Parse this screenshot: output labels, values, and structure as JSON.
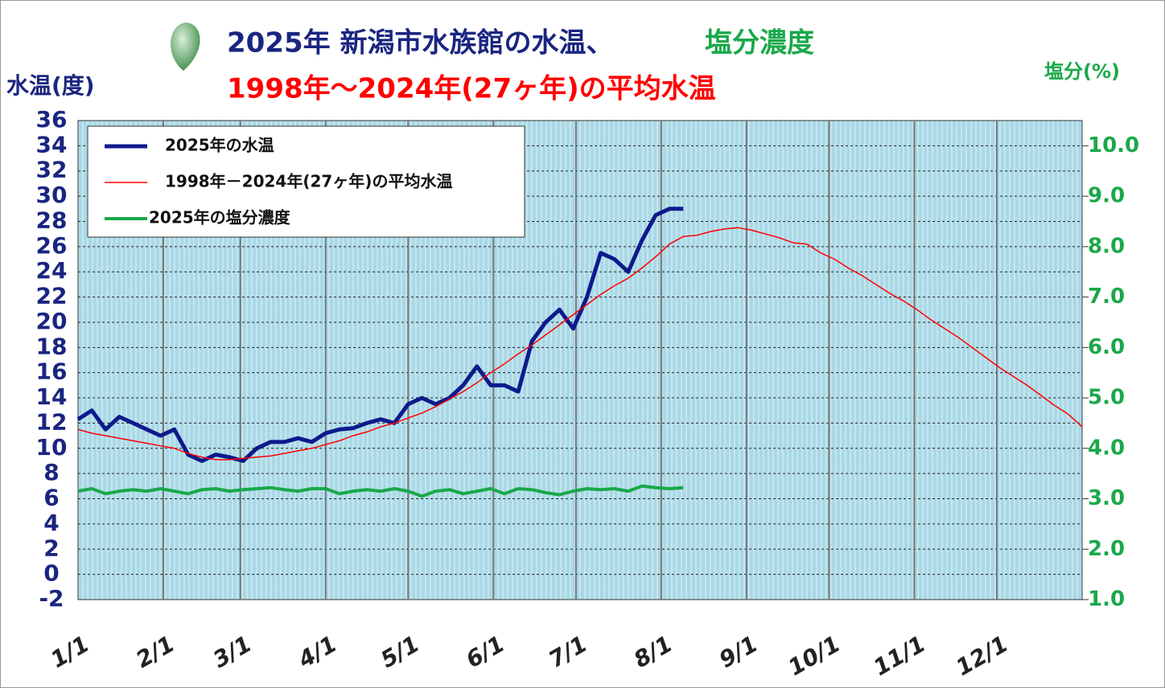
{
  "chart_data": {
    "type": "line",
    "title": "2025年 新潟市水族館の水温、",
    "title_suffix": "塩分濃度",
    "subtitle": "1998年～2024年(27ヶ年)の平均水温",
    "y_label": "水温(度)",
    "y2_label": "塩分(%)",
    "xlim": [
      0,
      365
    ],
    "xticks": [
      {
        "value": 0,
        "label": "1/1"
      },
      {
        "value": 31,
        "label": "2/1"
      },
      {
        "value": 59,
        "label": "3/1"
      },
      {
        "value": 90,
        "label": "4/1"
      },
      {
        "value": 120,
        "label": "5/1"
      },
      {
        "value": 151,
        "label": "6/1"
      },
      {
        "value": 181,
        "label": "7/1"
      },
      {
        "value": 212,
        "label": "8/1"
      },
      {
        "value": 243,
        "label": "9/1"
      },
      {
        "value": 273,
        "label": "10/1"
      },
      {
        "value": 304,
        "label": "11/1"
      },
      {
        "value": 334,
        "label": "12/1"
      }
    ],
    "ylim": [
      -2,
      36
    ],
    "yticks": [
      -2,
      0,
      2,
      4,
      6,
      8,
      10,
      12,
      14,
      16,
      18,
      20,
      22,
      24,
      26,
      28,
      30,
      32,
      34,
      36
    ],
    "y2lim": [
      1.0,
      10.5
    ],
    "y2ticks": [
      {
        "value": 1,
        "label": "1.0"
      },
      {
        "value": 2,
        "label": "2.0"
      },
      {
        "value": 3,
        "label": "3.0"
      },
      {
        "value": 4,
        "label": "4.0"
      },
      {
        "value": 5,
        "label": "5.0"
      },
      {
        "value": 6,
        "label": "6.0"
      },
      {
        "value": 7,
        "label": "7.0"
      },
      {
        "value": 8,
        "label": "8.0"
      },
      {
        "value": 9,
        "label": "9.0"
      },
      {
        "value": 10,
        "label": "10.0"
      }
    ],
    "grid": true,
    "legend": "upper left",
    "x": [
      0,
      5,
      10,
      15,
      20,
      25,
      30,
      35,
      40,
      45,
      50,
      55,
      60,
      65,
      70,
      75,
      80,
      85,
      90,
      95,
      100,
      105,
      110,
      115,
      120,
      125,
      130,
      135,
      140,
      145,
      150,
      155,
      160,
      165,
      170,
      175,
      180,
      185,
      190,
      195,
      200,
      205,
      210,
      215,
      220,
      225,
      230,
      235,
      240,
      245,
      250,
      255,
      260,
      265,
      270,
      275,
      280,
      285,
      290,
      295,
      300,
      305,
      310,
      315,
      320,
      325,
      330,
      335,
      340,
      345,
      350,
      355,
      360,
      365
    ],
    "series": [
      {
        "name": "2025年の水温",
        "color": "#0d1a8c",
        "values": [
          12.3,
          13,
          11.5,
          12.5,
          12,
          11.5,
          11,
          11.5,
          9.5,
          9,
          9.5,
          9.3,
          9,
          10,
          10.5,
          10.5,
          10.8,
          10.5,
          11.2,
          11.5,
          11.6,
          12,
          12.3,
          12,
          13.5,
          14,
          13.5,
          14,
          15,
          16.5,
          15,
          15,
          14.5,
          18.5,
          20,
          21,
          19.5,
          22,
          25.5,
          25,
          24,
          26.5,
          28.5,
          29,
          29,
          null,
          null,
          null,
          null,
          null,
          null,
          null,
          null,
          null,
          null,
          null,
          null,
          null,
          null,
          null,
          null,
          null,
          null,
          null,
          null,
          null,
          null,
          null,
          null,
          null,
          null,
          null,
          null,
          null
        ]
      },
      {
        "name": "1998年－2024年(27ヶ年)の平均水温",
        "color": "#ff0000",
        "values": [
          11.5,
          11.2,
          11,
          10.8,
          10.6,
          10.4,
          10.2,
          10,
          9.6,
          9.3,
          9.1,
          9.1,
          9.2,
          9.3,
          9.4,
          9.6,
          9.8,
          10,
          10.3,
          10.6,
          11,
          11.3,
          11.7,
          12,
          12.4,
          12.8,
          13.3,
          13.9,
          14.5,
          15.2,
          16,
          16.7,
          17.5,
          18.2,
          19,
          19.8,
          20.6,
          21.4,
          22.2,
          22.9,
          23.5,
          24.3,
          25.2,
          26.2,
          26.8,
          26.9,
          27.2,
          27.4,
          27.5,
          27.3,
          27,
          26.7,
          26.3,
          26.2,
          25.5,
          25,
          24.3,
          23.7,
          23,
          22.3,
          21.7,
          21,
          20.2,
          19.5,
          18.8,
          18,
          17.2,
          16.4,
          15.7,
          15,
          14.2,
          13.4,
          12.7,
          11.7
        ]
      },
      {
        "name": "2025年の塩分濃度",
        "color": "#1aa84a",
        "axis": "y2",
        "values": [
          3.15,
          3.2,
          3.1,
          3.15,
          3.18,
          3.15,
          3.2,
          3.15,
          3.1,
          3.18,
          3.2,
          3.15,
          3.18,
          3.2,
          3.22,
          3.18,
          3.15,
          3.2,
          3.2,
          3.1,
          3.15,
          3.18,
          3.15,
          3.2,
          3.15,
          3.05,
          3.15,
          3.18,
          3.1,
          3.15,
          3.2,
          3.1,
          3.2,
          3.18,
          3.12,
          3.08,
          3.15,
          3.2,
          3.18,
          3.2,
          3.15,
          3.25,
          3.22,
          3.2,
          3.22,
          null,
          null,
          null,
          null,
          null,
          null,
          null,
          null,
          null,
          null,
          null,
          null,
          null,
          null,
          null,
          null,
          null,
          null,
          null,
          null,
          null,
          null,
          null,
          null,
          null,
          null,
          null,
          null,
          null
        ]
      }
    ]
  }
}
